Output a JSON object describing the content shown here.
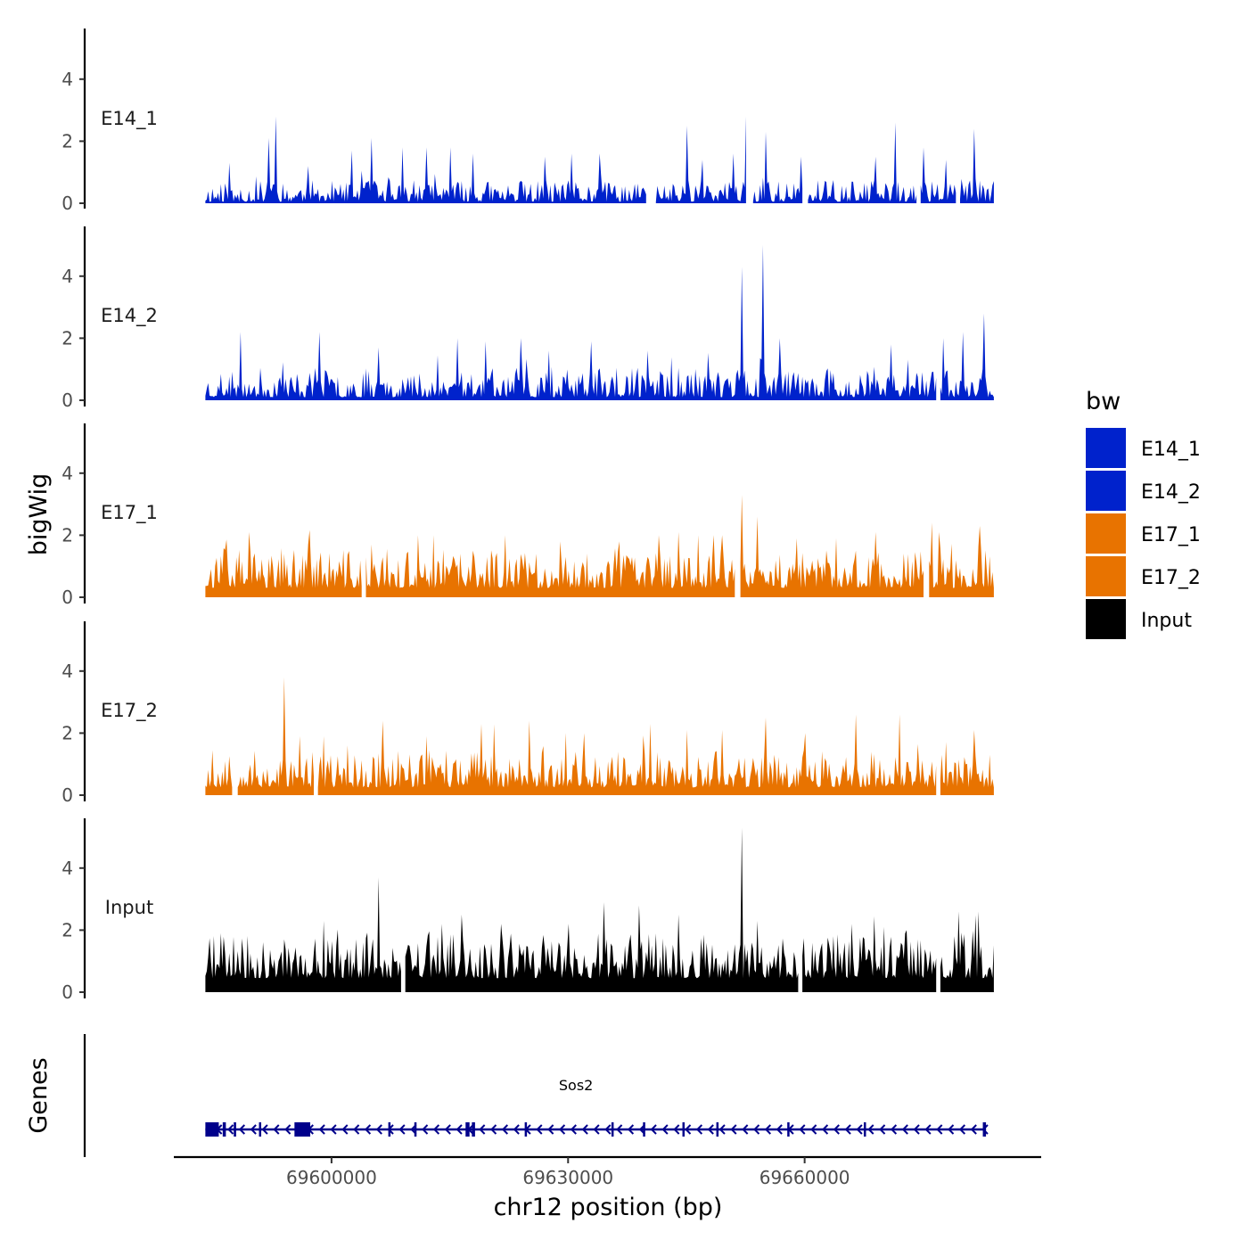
{
  "chart_data": {
    "type": "area",
    "title": "",
    "ylabel": "bigWig",
    "genes_label": "Genes",
    "xlabel": "chr12 position (bp)",
    "chromosome": "chr12",
    "xlim": [
      69580000,
      69690000
    ],
    "ylim": [
      0,
      5.8
    ],
    "region": [
      69584000,
      69684000
    ],
    "x_ticks": [
      69600000,
      69630000,
      69660000
    ],
    "x_tick_labels": [
      "69600000",
      "69630000",
      "69660000"
    ],
    "y_ticks": [
      0,
      2,
      4
    ],
    "y_tick_labels": [
      "0",
      "2",
      "4"
    ],
    "legend": {
      "title": "bw",
      "entries": [
        {
          "label": "E14_1",
          "color": "#0022cc"
        },
        {
          "label": "E14_2",
          "color": "#0022cc"
        },
        {
          "label": "E17_1",
          "color": "#e87300"
        },
        {
          "label": "E17_2",
          "color": "#e87300"
        },
        {
          "label": "Input",
          "color": "#000000"
        }
      ]
    },
    "series": [
      {
        "name": "E14_1",
        "color": "#0022cc",
        "baseline": 0.05,
        "noise": 0.7,
        "seed": 11,
        "peaks": [
          {
            "x": 69587000,
            "y": 1.3
          },
          {
            "x": 69592000,
            "y": 2.1
          },
          {
            "x": 69593000,
            "y": 2.8
          },
          {
            "x": 69597000,
            "y": 1.2
          },
          {
            "x": 69602500,
            "y": 1.7
          },
          {
            "x": 69605000,
            "y": 2.1
          },
          {
            "x": 69609000,
            "y": 1.8
          },
          {
            "x": 69612000,
            "y": 1.8
          },
          {
            "x": 69615000,
            "y": 1.8
          },
          {
            "x": 69618000,
            "y": 1.6
          },
          {
            "x": 69627000,
            "y": 1.5
          },
          {
            "x": 69630500,
            "y": 1.6
          },
          {
            "x": 69634000,
            "y": 1.6
          },
          {
            "x": 69645000,
            "y": 2.5
          },
          {
            "x": 69647000,
            "y": 1.4
          },
          {
            "x": 69651000,
            "y": 1.6
          },
          {
            "x": 69652500,
            "y": 2.8
          },
          {
            "x": 69655000,
            "y": 2.3
          },
          {
            "x": 69659500,
            "y": 1.5
          },
          {
            "x": 69669000,
            "y": 1.5
          },
          {
            "x": 69671500,
            "y": 2.6
          },
          {
            "x": 69675000,
            "y": 1.8
          },
          {
            "x": 69678000,
            "y": 1.4
          },
          {
            "x": 69681500,
            "y": 2.4
          }
        ],
        "gaps": [
          [
            69640000,
            69641100
          ],
          [
            69652700,
            69653400
          ],
          [
            69659800,
            69660300
          ],
          [
            69674200,
            69674700
          ],
          [
            69679300,
            69679700
          ]
        ]
      },
      {
        "name": "E14_2",
        "color": "#0022cc",
        "baseline": 0.1,
        "noise": 0.95,
        "seed": 23,
        "peaks": [
          {
            "x": 69588500,
            "y": 2.2
          },
          {
            "x": 69598500,
            "y": 2.2
          },
          {
            "x": 69606000,
            "y": 1.7
          },
          {
            "x": 69616000,
            "y": 2.0
          },
          {
            "x": 69619500,
            "y": 1.9
          },
          {
            "x": 69624000,
            "y": 2.0
          },
          {
            "x": 69627500,
            "y": 1.6
          },
          {
            "x": 69633000,
            "y": 1.9
          },
          {
            "x": 69640000,
            "y": 1.6
          },
          {
            "x": 69652000,
            "y": 4.3
          },
          {
            "x": 69654700,
            "y": 5.0
          },
          {
            "x": 69656800,
            "y": 2.0
          },
          {
            "x": 69671000,
            "y": 1.8
          },
          {
            "x": 69677500,
            "y": 2.0
          },
          {
            "x": 69680000,
            "y": 2.2
          },
          {
            "x": 69682800,
            "y": 2.8
          }
        ],
        "gaps": [
          [
            69676700,
            69677100
          ]
        ]
      },
      {
        "name": "E17_1",
        "color": "#e87300",
        "baseline": 0.3,
        "noise": 1.3,
        "seed": 37,
        "peaks": [
          {
            "x": 69589500,
            "y": 2.1
          },
          {
            "x": 69597000,
            "y": 1.7
          },
          {
            "x": 69605000,
            "y": 1.7
          },
          {
            "x": 69611000,
            "y": 2.0
          },
          {
            "x": 69613000,
            "y": 2.0
          },
          {
            "x": 69622000,
            "y": 2.0
          },
          {
            "x": 69629000,
            "y": 1.8
          },
          {
            "x": 69636500,
            "y": 1.8
          },
          {
            "x": 69641500,
            "y": 2.0
          },
          {
            "x": 69644000,
            "y": 2.1
          },
          {
            "x": 69646500,
            "y": 2.0
          },
          {
            "x": 69649500,
            "y": 2.0
          },
          {
            "x": 69652000,
            "y": 3.3
          },
          {
            "x": 69654000,
            "y": 2.6
          },
          {
            "x": 69659000,
            "y": 1.9
          },
          {
            "x": 69664000,
            "y": 1.9
          },
          {
            "x": 69669000,
            "y": 2.1
          },
          {
            "x": 69677000,
            "y": 2.1
          },
          {
            "x": 69682200,
            "y": 2.3
          }
        ],
        "gaps": [
          [
            69603900,
            69604300
          ],
          [
            69651300,
            69651700
          ],
          [
            69675200,
            69675700
          ]
        ]
      },
      {
        "name": "E17_2",
        "color": "#e87300",
        "baseline": 0.25,
        "noise": 1.2,
        "seed": 53,
        "peaks": [
          {
            "x": 69594000,
            "y": 3.8
          },
          {
            "x": 69596000,
            "y": 1.9
          },
          {
            "x": 69599000,
            "y": 1.9
          },
          {
            "x": 69606500,
            "y": 2.4
          },
          {
            "x": 69612000,
            "y": 1.9
          },
          {
            "x": 69619000,
            "y": 2.3
          },
          {
            "x": 69625000,
            "y": 2.4
          },
          {
            "x": 69632000,
            "y": 2.0
          },
          {
            "x": 69640500,
            "y": 2.3
          },
          {
            "x": 69645000,
            "y": 2.1
          },
          {
            "x": 69649500,
            "y": 2.1
          },
          {
            "x": 69655000,
            "y": 2.5
          },
          {
            "x": 69660000,
            "y": 2.0
          },
          {
            "x": 69666500,
            "y": 2.6
          },
          {
            "x": 69672000,
            "y": 2.6
          },
          {
            "x": 69677000,
            "y": 2.5
          },
          {
            "x": 69681500,
            "y": 2.1
          }
        ],
        "gaps": [
          [
            69587500,
            69588000
          ],
          [
            69597800,
            69598200
          ],
          [
            69676700,
            69677100
          ]
        ]
      },
      {
        "name": "Input",
        "color": "#000000",
        "baseline": 0.45,
        "noise": 1.45,
        "seed": 71,
        "peaks": [
          {
            "x": 69586000,
            "y": 1.9
          },
          {
            "x": 69599000,
            "y": 2.3
          },
          {
            "x": 69606000,
            "y": 3.7
          },
          {
            "x": 69614000,
            "y": 2.2
          },
          {
            "x": 69616500,
            "y": 2.5
          },
          {
            "x": 69621500,
            "y": 2.2
          },
          {
            "x": 69630000,
            "y": 2.2
          },
          {
            "x": 69634500,
            "y": 2.9
          },
          {
            "x": 69639000,
            "y": 2.8
          },
          {
            "x": 69644000,
            "y": 2.5
          },
          {
            "x": 69652000,
            "y": 5.3
          },
          {
            "x": 69654000,
            "y": 2.3
          },
          {
            "x": 69666000,
            "y": 2.2
          },
          {
            "x": 69673000,
            "y": 2.0
          },
          {
            "x": 69679500,
            "y": 2.6
          },
          {
            "x": 69682000,
            "y": 2.6
          }
        ],
        "gaps": [
          [
            69609000,
            69609300
          ],
          [
            69659300,
            69659600
          ],
          [
            69676700,
            69677100
          ]
        ]
      }
    ],
    "genes": [
      {
        "name": "Sos2",
        "start": 69584000,
        "end": 69683000,
        "strand": "-",
        "color": "#00008b",
        "exons": [
          [
            69584000,
            69585700
          ],
          [
            69586200,
            69586600
          ],
          [
            69587600,
            69587900
          ],
          [
            69590800,
            69591000
          ],
          [
            69595300,
            69597300
          ],
          [
            69607200,
            69607400
          ],
          [
            69610500,
            69610700
          ],
          [
            69617000,
            69617500
          ],
          [
            69617800,
            69618200
          ],
          [
            69624500,
            69624700
          ],
          [
            69635500,
            69635700
          ],
          [
            69639500,
            69639700
          ],
          [
            69644500,
            69644700
          ],
          [
            69648800,
            69649000
          ],
          [
            69657800,
            69658000
          ],
          [
            69667500,
            69667700
          ],
          [
            69682600,
            69683000
          ]
        ]
      }
    ]
  }
}
